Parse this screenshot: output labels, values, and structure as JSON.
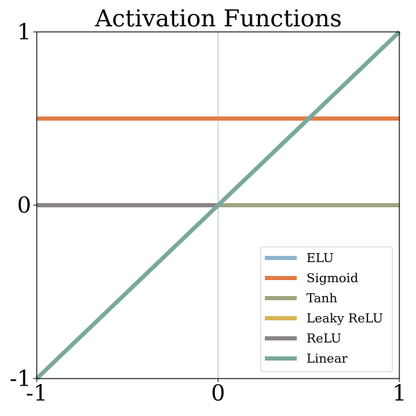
{
  "chart_data": {
    "type": "line",
    "title": "Activation Functions",
    "xlabel": "",
    "ylabel": "",
    "xlim": [
      -1,
      1
    ],
    "ylim": [
      -1,
      1
    ],
    "xticks": [
      {
        "value": -1,
        "label": "-1"
      },
      {
        "value": 0,
        "label": "0"
      },
      {
        "value": 1,
        "label": "1"
      }
    ],
    "yticks": [
      {
        "value": -1,
        "label": "-1"
      },
      {
        "value": 0,
        "label": "0"
      },
      {
        "value": 1,
        "label": "1"
      }
    ],
    "grid": false,
    "zero_line_x": 0,
    "legend_position": "bottom-right",
    "series": [
      {
        "name": "ELU",
        "color": "#8fb3cf",
        "points": [
          [
            -1,
            0
          ],
          [
            0,
            0
          ]
        ]
      },
      {
        "name": "Sigmoid",
        "color": "#e07d45",
        "points": [
          [
            -1,
            0.5
          ],
          [
            1,
            0.5
          ]
        ]
      },
      {
        "name": "Tanh",
        "color": "#9fa57e",
        "points": [
          [
            -1,
            0
          ],
          [
            1,
            0
          ]
        ]
      },
      {
        "name": "Leaky ReLU",
        "color": "#d8b255",
        "points": [
          [
            -1,
            0
          ],
          [
            0,
            0
          ]
        ]
      },
      {
        "name": "ReLU",
        "color": "#8a8384",
        "points": [
          [
            -1,
            0
          ],
          [
            0,
            0
          ]
        ]
      },
      {
        "name": "Linear",
        "color": "#79a89c",
        "points": [
          [
            -1,
            -1
          ],
          [
            1,
            1
          ]
        ]
      }
    ]
  }
}
